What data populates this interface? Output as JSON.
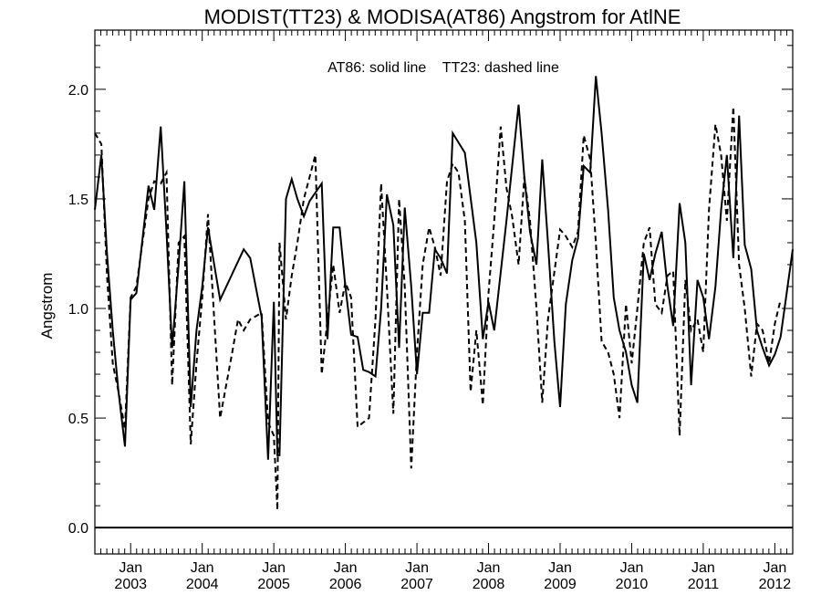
{
  "chart_data": {
    "type": "line",
    "title": "MODIST(TT23) & MODISA(AT86)  Angstrom for AtlNE",
    "annotation": "AT86: solid line    TT23: dashed line",
    "ylabel": "Angstrom",
    "xlabel": "",
    "ylim": [
      -0.12,
      2.27
    ],
    "xlim": [
      2002.5,
      2012.25
    ],
    "yticks": [
      {
        "value": 0.0,
        "label": "0.0"
      },
      {
        "value": 0.5,
        "label": "0.5"
      },
      {
        "value": 1.0,
        "label": "1.0"
      },
      {
        "value": 1.5,
        "label": "1.5"
      },
      {
        "value": 2.0,
        "label": "2.0"
      }
    ],
    "xticks": [
      {
        "value": 2003,
        "month": "Jan",
        "year": "2003"
      },
      {
        "value": 2004,
        "month": "Jan",
        "year": "2004"
      },
      {
        "value": 2005,
        "month": "Jan",
        "year": "2005"
      },
      {
        "value": 2006,
        "month": "Jan",
        "year": "2006"
      },
      {
        "value": 2007,
        "month": "Jan",
        "year": "2007"
      },
      {
        "value": 2008,
        "month": "Jan",
        "year": "2008"
      },
      {
        "value": 2009,
        "month": "Jan",
        "year": "2009"
      },
      {
        "value": 2010,
        "month": "Jan",
        "year": "2010"
      },
      {
        "value": 2011,
        "month": "Jan",
        "year": "2011"
      },
      {
        "value": 2012,
        "month": "Jan",
        "year": "2012"
      }
    ],
    "grid": false,
    "reference_line": {
      "y": 0.0
    },
    "series": [
      {
        "name": "AT86",
        "style": "solid",
        "color": "#000000",
        "points": [
          [
            2002.5,
            1.45
          ],
          [
            2002.59,
            1.7
          ],
          [
            2002.67,
            1.25
          ],
          [
            2002.75,
            0.9
          ],
          [
            2002.83,
            0.62
          ],
          [
            2002.92,
            0.37
          ],
          [
            2003.0,
            1.04
          ],
          [
            2003.08,
            1.07
          ],
          [
            2003.25,
            1.56
          ],
          [
            2003.33,
            1.45
          ],
          [
            2003.42,
            1.83
          ],
          [
            2003.5,
            1.35
          ],
          [
            2003.58,
            0.82
          ],
          [
            2003.67,
            1.2
          ],
          [
            2003.75,
            1.58
          ],
          [
            2003.84,
            0.55
          ],
          [
            2003.92,
            0.9
          ],
          [
            2004.0,
            1.1
          ],
          [
            2004.08,
            1.37
          ],
          [
            2004.25,
            1.04
          ],
          [
            2004.58,
            1.27
          ],
          [
            2004.67,
            1.23
          ],
          [
            2004.83,
            0.96
          ],
          [
            2004.92,
            0.31
          ],
          [
            2005.0,
            1.03
          ],
          [
            2005.05,
            0.33
          ],
          [
            2005.08,
            0.33
          ],
          [
            2005.17,
            1.5
          ],
          [
            2005.25,
            1.59
          ],
          [
            2005.33,
            1.5
          ],
          [
            2005.42,
            1.42
          ],
          [
            2005.5,
            1.49
          ],
          [
            2005.67,
            1.57
          ],
          [
            2005.75,
            0.86
          ],
          [
            2005.83,
            1.37
          ],
          [
            2005.92,
            1.37
          ],
          [
            2006.0,
            1.1
          ],
          [
            2006.08,
            0.88
          ],
          [
            2006.17,
            0.87
          ],
          [
            2006.25,
            0.72
          ],
          [
            2006.33,
            0.71
          ],
          [
            2006.42,
            0.69
          ],
          [
            2006.5,
            1.0
          ],
          [
            2006.58,
            1.52
          ],
          [
            2006.67,
            1.38
          ],
          [
            2006.75,
            0.82
          ],
          [
            2006.83,
            1.46
          ],
          [
            2006.92,
            1.1
          ],
          [
            2007.0,
            0.7
          ],
          [
            2007.08,
            0.98
          ],
          [
            2007.17,
            0.98
          ],
          [
            2007.25,
            1.27
          ],
          [
            2007.33,
            1.23
          ],
          [
            2007.42,
            1.16
          ],
          [
            2007.5,
            1.8
          ],
          [
            2007.67,
            1.71
          ],
          [
            2007.83,
            1.3
          ],
          [
            2007.92,
            0.86
          ],
          [
            2008.0,
            1.03
          ],
          [
            2008.08,
            0.9
          ],
          [
            2008.25,
            1.4
          ],
          [
            2008.42,
            1.93
          ],
          [
            2008.5,
            1.6
          ],
          [
            2008.58,
            1.35
          ],
          [
            2008.67,
            1.2
          ],
          [
            2008.75,
            1.68
          ],
          [
            2008.83,
            1.3
          ],
          [
            2008.92,
            0.85
          ],
          [
            2009.0,
            0.55
          ],
          [
            2009.08,
            1.02
          ],
          [
            2009.17,
            1.22
          ],
          [
            2009.25,
            1.32
          ],
          [
            2009.33,
            1.65
          ],
          [
            2009.42,
            1.62
          ],
          [
            2009.5,
            2.06
          ],
          [
            2009.58,
            1.8
          ],
          [
            2009.67,
            1.45
          ],
          [
            2009.75,
            1.05
          ],
          [
            2009.83,
            0.9
          ],
          [
            2009.92,
            0.8
          ],
          [
            2010.0,
            0.65
          ],
          [
            2010.08,
            0.57
          ],
          [
            2010.17,
            1.25
          ],
          [
            2010.25,
            1.13
          ],
          [
            2010.33,
            1.25
          ],
          [
            2010.42,
            1.35
          ],
          [
            2010.5,
            1.1
          ],
          [
            2010.58,
            0.92
          ],
          [
            2010.67,
            1.48
          ],
          [
            2010.75,
            1.3
          ],
          [
            2010.83,
            0.65
          ],
          [
            2010.92,
            1.13
          ],
          [
            2011.0,
            1.05
          ],
          [
            2011.08,
            0.86
          ],
          [
            2011.17,
            1.1
          ],
          [
            2011.25,
            1.45
          ],
          [
            2011.33,
            1.7
          ],
          [
            2011.42,
            1.23
          ],
          [
            2011.5,
            1.88
          ],
          [
            2011.58,
            1.29
          ],
          [
            2011.67,
            1.18
          ],
          [
            2011.75,
            0.9
          ],
          [
            2011.83,
            0.82
          ],
          [
            2011.92,
            0.74
          ],
          [
            2012.0,
            0.79
          ],
          [
            2012.08,
            0.87
          ],
          [
            2012.17,
            1.08
          ],
          [
            2012.25,
            1.27
          ]
        ]
      },
      {
        "name": "TT23",
        "style": "dashed",
        "color": "#000000",
        "points": [
          [
            2002.5,
            1.8
          ],
          [
            2002.59,
            1.75
          ],
          [
            2002.67,
            1.15
          ],
          [
            2002.75,
            0.75
          ],
          [
            2002.83,
            0.62
          ],
          [
            2002.92,
            0.45
          ],
          [
            2003.0,
            1.05
          ],
          [
            2003.08,
            1.1
          ],
          [
            2003.25,
            1.5
          ],
          [
            2003.33,
            1.58
          ],
          [
            2003.42,
            1.57
          ],
          [
            2003.5,
            1.62
          ],
          [
            2003.58,
            0.65
          ],
          [
            2003.67,
            1.3
          ],
          [
            2003.75,
            1.33
          ],
          [
            2003.84,
            0.38
          ],
          [
            2003.92,
            0.75
          ],
          [
            2004.0,
            1.05
          ],
          [
            2004.08,
            1.43
          ],
          [
            2004.25,
            0.5
          ],
          [
            2004.42,
            0.8
          ],
          [
            2004.5,
            0.95
          ],
          [
            2004.58,
            0.9
          ],
          [
            2004.67,
            0.95
          ],
          [
            2004.83,
            0.98
          ],
          [
            2004.92,
            0.48
          ],
          [
            2005.0,
            0.42
          ],
          [
            2005.05,
            0.08
          ],
          [
            2005.08,
            1.3
          ],
          [
            2005.17,
            0.95
          ],
          [
            2005.25,
            1.15
          ],
          [
            2005.33,
            1.3
          ],
          [
            2005.42,
            1.5
          ],
          [
            2005.58,
            1.7
          ],
          [
            2005.67,
            0.7
          ],
          [
            2005.75,
            0.95
          ],
          [
            2005.83,
            1.2
          ],
          [
            2005.92,
            0.98
          ],
          [
            2006.0,
            1.12
          ],
          [
            2006.08,
            1.05
          ],
          [
            2006.17,
            0.46
          ],
          [
            2006.33,
            0.5
          ],
          [
            2006.42,
            0.95
          ],
          [
            2006.5,
            1.57
          ],
          [
            2006.58,
            1.1
          ],
          [
            2006.67,
            0.52
          ],
          [
            2006.75,
            1.5
          ],
          [
            2006.83,
            1.1
          ],
          [
            2006.92,
            0.27
          ],
          [
            2007.0,
            0.8
          ],
          [
            2007.08,
            1.2
          ],
          [
            2007.17,
            1.37
          ],
          [
            2007.25,
            1.28
          ],
          [
            2007.33,
            1.15
          ],
          [
            2007.42,
            1.58
          ],
          [
            2007.5,
            1.66
          ],
          [
            2007.58,
            1.62
          ],
          [
            2007.67,
            1.4
          ],
          [
            2007.75,
            0.62
          ],
          [
            2007.83,
            0.9
          ],
          [
            2007.92,
            0.56
          ],
          [
            2008.0,
            1.07
          ],
          [
            2008.08,
            1.4
          ],
          [
            2008.17,
            1.83
          ],
          [
            2008.25,
            1.55
          ],
          [
            2008.33,
            1.42
          ],
          [
            2008.42,
            1.2
          ],
          [
            2008.5,
            1.6
          ],
          [
            2008.58,
            1.4
          ],
          [
            2008.67,
            1.0
          ],
          [
            2008.75,
            0.57
          ],
          [
            2008.83,
            0.95
          ],
          [
            2009.0,
            1.36
          ],
          [
            2009.08,
            1.33
          ],
          [
            2009.17,
            1.28
          ],
          [
            2009.25,
            1.35
          ],
          [
            2009.33,
            1.79
          ],
          [
            2009.42,
            1.68
          ],
          [
            2009.5,
            1.3
          ],
          [
            2009.58,
            0.85
          ],
          [
            2009.67,
            0.8
          ],
          [
            2009.75,
            0.7
          ],
          [
            2009.83,
            0.5
          ],
          [
            2009.92,
            1.02
          ],
          [
            2010.0,
            0.75
          ],
          [
            2010.08,
            1.0
          ],
          [
            2010.17,
            1.3
          ],
          [
            2010.25,
            1.37
          ],
          [
            2010.33,
            1.02
          ],
          [
            2010.42,
            0.98
          ],
          [
            2010.5,
            1.15
          ],
          [
            2010.58,
            1.17
          ],
          [
            2010.67,
            0.42
          ],
          [
            2010.75,
            1.13
          ],
          [
            2010.83,
            0.9
          ],
          [
            2010.92,
            0.95
          ],
          [
            2011.0,
            0.8
          ],
          [
            2011.08,
            1.45
          ],
          [
            2011.17,
            1.84
          ],
          [
            2011.25,
            1.7
          ],
          [
            2011.33,
            1.4
          ],
          [
            2011.42,
            1.92
          ],
          [
            2011.5,
            1.2
          ],
          [
            2011.58,
            1.0
          ],
          [
            2011.67,
            0.69
          ],
          [
            2011.75,
            0.93
          ],
          [
            2011.83,
            0.9
          ],
          [
            2011.92,
            0.75
          ],
          [
            2012.0,
            0.93
          ],
          [
            2012.08,
            1.04
          ]
        ]
      }
    ]
  }
}
